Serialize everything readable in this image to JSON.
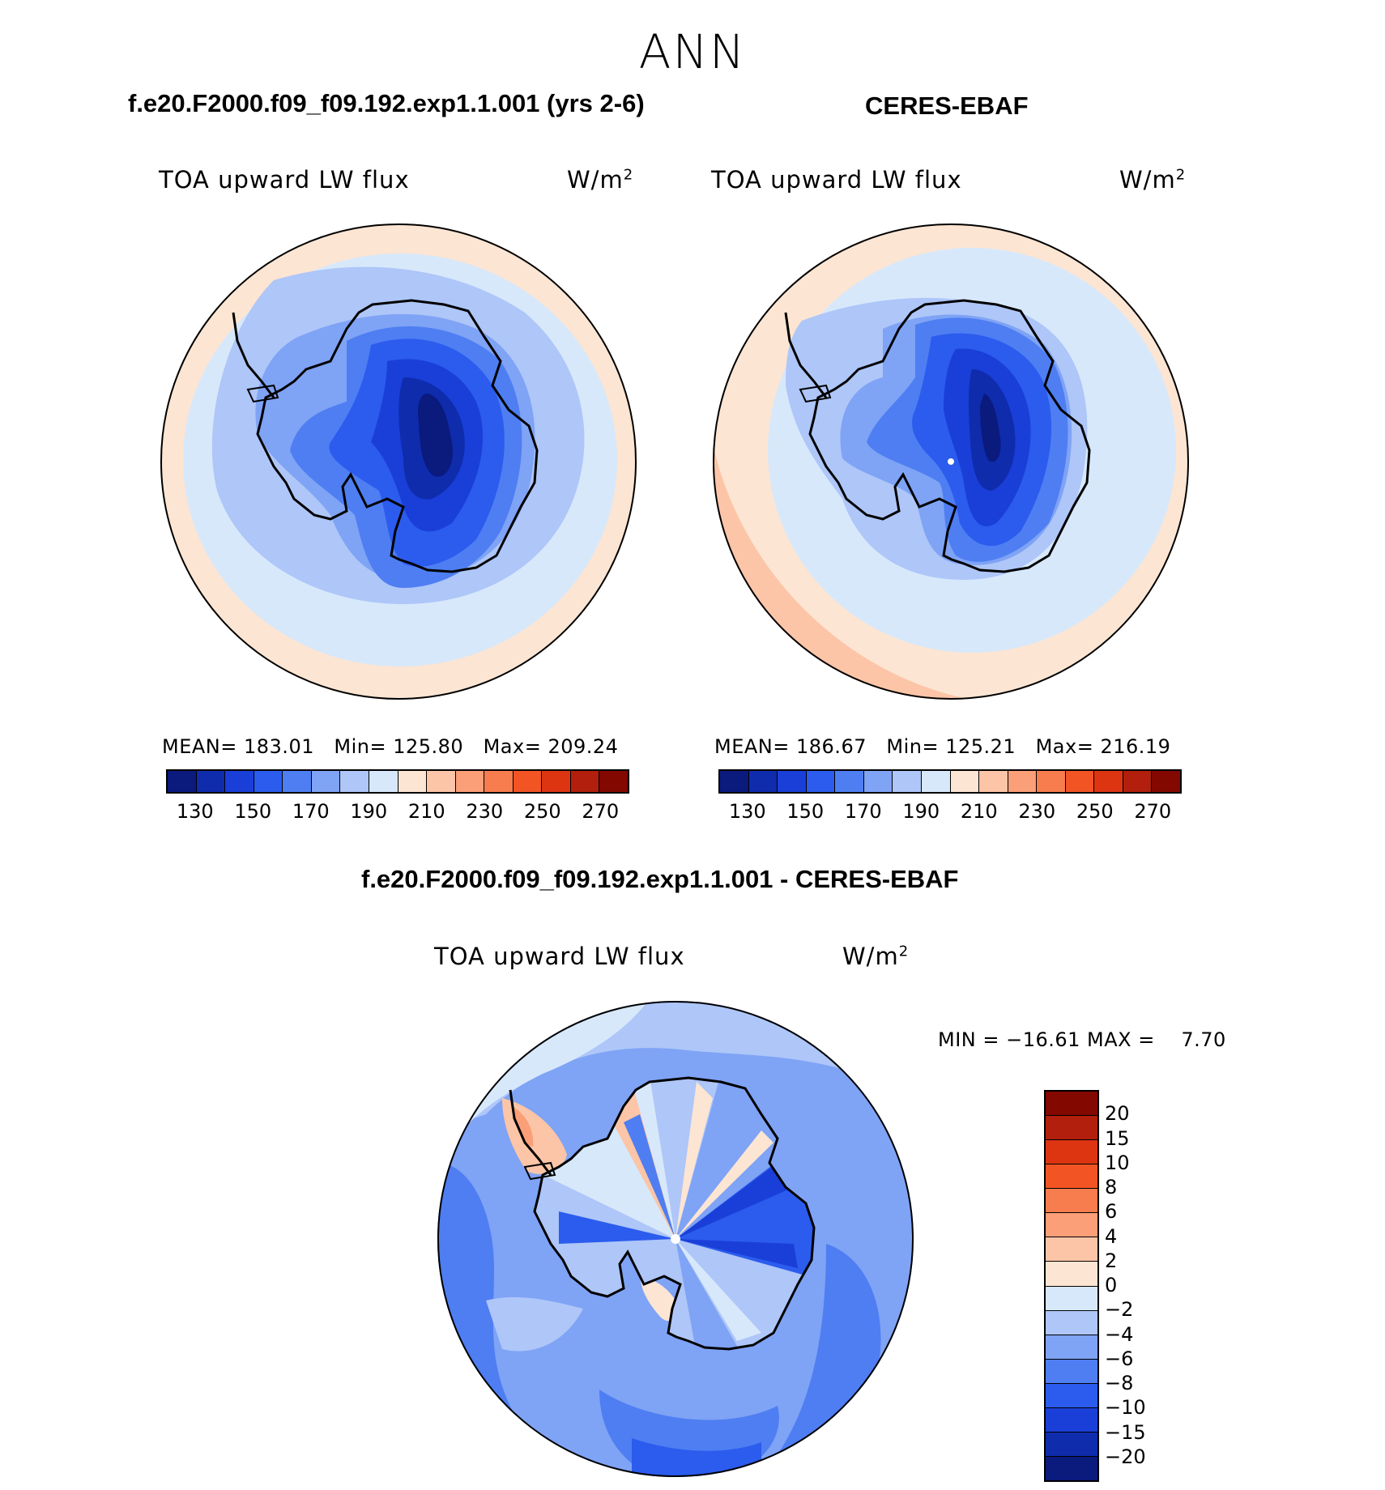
{
  "season": "ANN",
  "panels": [
    {
      "title": "f.e20.F2000.f09_f09.192.exp1.1.001 (yrs 2-6)",
      "variable": "TOA upward LW flux",
      "units": "W/m",
      "units_sup": "2",
      "stats": {
        "mean_label": "MEAN=",
        "mean": "183.01",
        "min_label": "Min=",
        "min": "125.80",
        "max_label": "Max=",
        "max": "209.24"
      }
    },
    {
      "title": "CERES-EBAF",
      "variable": "TOA upward LW flux",
      "units": "W/m",
      "units_sup": "2",
      "stats": {
        "mean_label": "MEAN=",
        "mean": "186.67",
        "min_label": "Min=",
        "min": "125.21",
        "max_label": "Max=",
        "max": "216.19"
      }
    }
  ],
  "abs_colorbar": {
    "colors": [
      "#0a1a7d",
      "#0e2cac",
      "#1a3fd8",
      "#2b5cee",
      "#4e7ef2",
      "#7fa3f5",
      "#aec6f8",
      "#d7e8fb",
      "#fce5d3",
      "#fcc5a7",
      "#fb9f78",
      "#f77c4e",
      "#f35424",
      "#dd3512",
      "#b21f0c",
      "#820800"
    ],
    "ticks": [
      "130",
      "150",
      "170",
      "190",
      "210",
      "230",
      "250",
      "270"
    ]
  },
  "diff_panel": {
    "title": "f.e20.F2000.f09_f09.192.exp1.1.001 - CERES-EBAF",
    "variable": "TOA upward LW flux",
    "units": "W/m",
    "units_sup": "2",
    "minmax": "MIN = −16.61 MAX =    7.70"
  },
  "diff_colorbar": {
    "colors": [
      "#820800",
      "#b21f0c",
      "#dd3512",
      "#f35424",
      "#f77c4e",
      "#fb9f78",
      "#fcc5a7",
      "#fce5d3",
      "#d7e8fb",
      "#aec6f8",
      "#7fa3f5",
      "#4e7ef2",
      "#2b5cee",
      "#1a3fd8",
      "#0e2cac",
      "#0a1a7d"
    ],
    "ticks": [
      "20",
      "15",
      "10",
      "8",
      "6",
      "4",
      "2",
      "0",
      "−2",
      "−4",
      "−6",
      "−8",
      "−10",
      "−15",
      "−20"
    ]
  }
}
